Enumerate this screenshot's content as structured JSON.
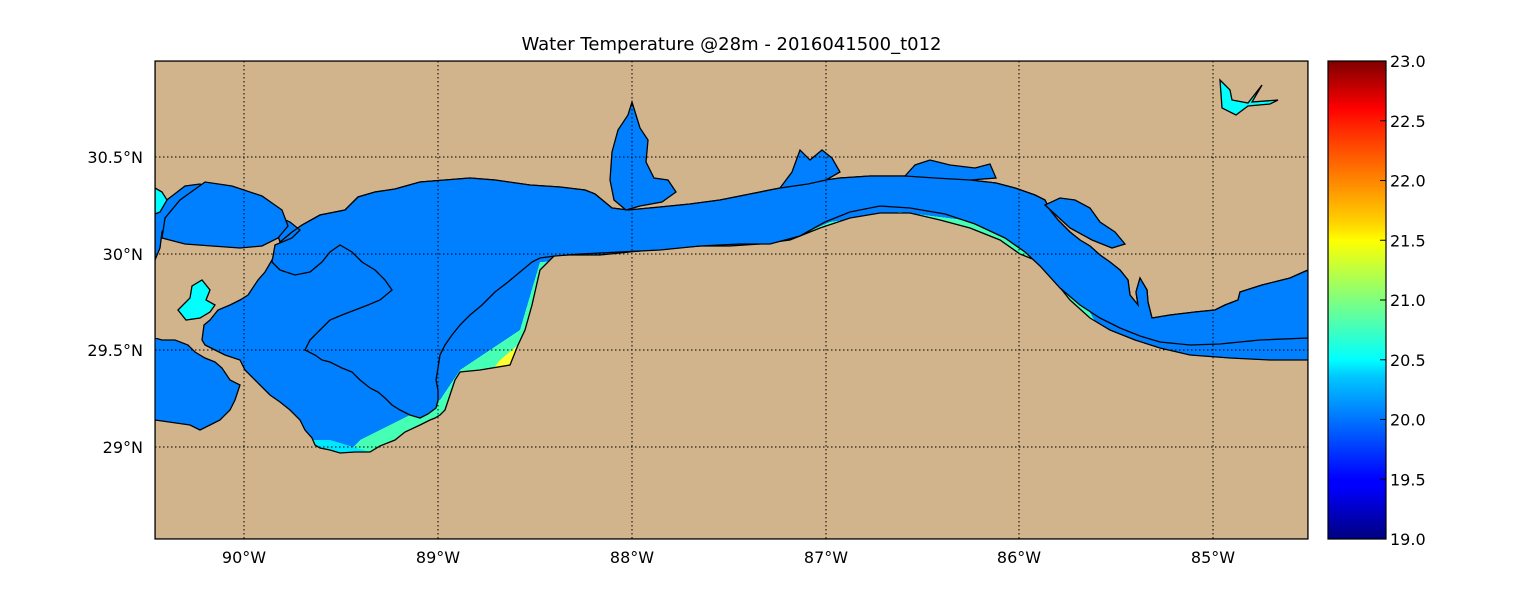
{
  "title": "Water Temperature @28m - 2016041500_t012",
  "map": {
    "longitude_ticks": [
      "90°W",
      "89°W",
      "88°W",
      "87°W",
      "86°W",
      "85°W"
    ],
    "latitude_ticks": [
      "30.5°N",
      "30°N",
      "29.5°N",
      "29°N"
    ],
    "land_color": "#d2b48c",
    "water_color": "#0080ff",
    "lake_color": "#00ffff",
    "grid_style": "dotted black"
  },
  "colorbar": {
    "ticks": [
      "23.0",
      "22.5",
      "22.0",
      "21.5",
      "21.0",
      "20.5",
      "20.0",
      "19.5",
      "19.0"
    ],
    "min": 19.0,
    "max": 23.0,
    "colormap": "jet"
  }
}
